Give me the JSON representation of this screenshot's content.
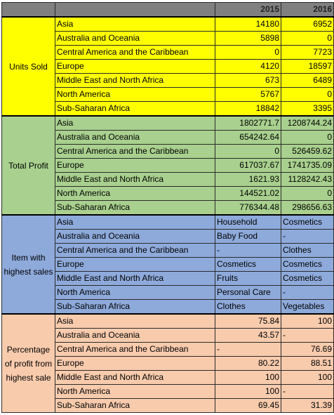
{
  "header": {
    "col_a": "",
    "col_b": "",
    "year1": "2015",
    "year2": "2016"
  },
  "sections": [
    {
      "label": "Units Sold",
      "rows": [
        {
          "region": "Asia",
          "v2015": "14180",
          "v2016": "6952"
        },
        {
          "region": "Australia and Oceania",
          "v2015": "5898",
          "v2016": "0"
        },
        {
          "region": "Central America and the Caribbean",
          "v2015": "0",
          "v2016": "7723"
        },
        {
          "region": "Europe",
          "v2015": "4120",
          "v2016": "18597"
        },
        {
          "region": "Middle East and North Africa",
          "v2015": "673",
          "v2016": "6489"
        },
        {
          "region": "North America",
          "v2015": "5767",
          "v2016": "0"
        },
        {
          "region": "Sub-Saharan Africa",
          "v2015": "18842",
          "v2016": "3395"
        }
      ]
    },
    {
      "label": "Total Profit",
      "rows": [
        {
          "region": "Asia",
          "v2015": "1802771.7",
          "v2016": "1208744.24"
        },
        {
          "region": "Australia and Oceania",
          "v2015": "654242.64",
          "v2016": "0"
        },
        {
          "region": "Central America and the Caribbean",
          "v2015": "0",
          "v2016": "526459.62"
        },
        {
          "region": "Europe",
          "v2015": "617037.67",
          "v2016": "1741735.09"
        },
        {
          "region": "Middle East and North Africa",
          "v2015": "1621.93",
          "v2016": "1128242.43"
        },
        {
          "region": "North America",
          "v2015": "144521.02",
          "v2016": "0"
        },
        {
          "region": "Sub-Saharan Africa",
          "v2015": "776344.48",
          "v2016": "298656.63"
        }
      ]
    },
    {
      "label": "Item with highest sales",
      "rows": [
        {
          "region": "Asia",
          "v2015": "Household",
          "v2016": "Cosmetics"
        },
        {
          "region": "Australia and Oceania",
          "v2015": "Baby Food",
          "v2016": "-"
        },
        {
          "region": "Central America and the Caribbean",
          "v2015": "-",
          "v2016": "Clothes"
        },
        {
          "region": "Europe",
          "v2015": "Cosmetics",
          "v2016": "Cosmetics"
        },
        {
          "region": "Middle East and North Africa",
          "v2015": "Fruits",
          "v2016": "Cosmetics"
        },
        {
          "region": "North America",
          "v2015": "Personal Care",
          "v2016": "-"
        },
        {
          "region": "Sub-Saharan Africa",
          "v2015": "Clothes",
          "v2016": "Vegetables"
        }
      ]
    },
    {
      "label": "Percentage of profit from highest sale",
      "rows": [
        {
          "region": "Asia",
          "v2015": "75.84",
          "v2016": "100"
        },
        {
          "region": "Australia and Oceania",
          "v2015": "43.57",
          "v2016": "-"
        },
        {
          "region": "Central America and the Caribbean",
          "v2015": "-",
          "v2016": "76.69"
        },
        {
          "region": "Europe",
          "v2015": "80.22",
          "v2016": "88.51"
        },
        {
          "region": "Middle East and North Africa",
          "v2015": "100",
          "v2016": "100"
        },
        {
          "region": "North America",
          "v2015": "100",
          "v2016": "-"
        },
        {
          "region": "Sub-Saharan Africa",
          "v2015": "69.45",
          "v2016": "31.39"
        }
      ]
    }
  ],
  "colors": {
    "units_sold": "#ffff00",
    "total_profit": "#a9d08e",
    "item_highest": "#8eaadb",
    "percentage": "#f8cbad",
    "header": "#808080"
  }
}
